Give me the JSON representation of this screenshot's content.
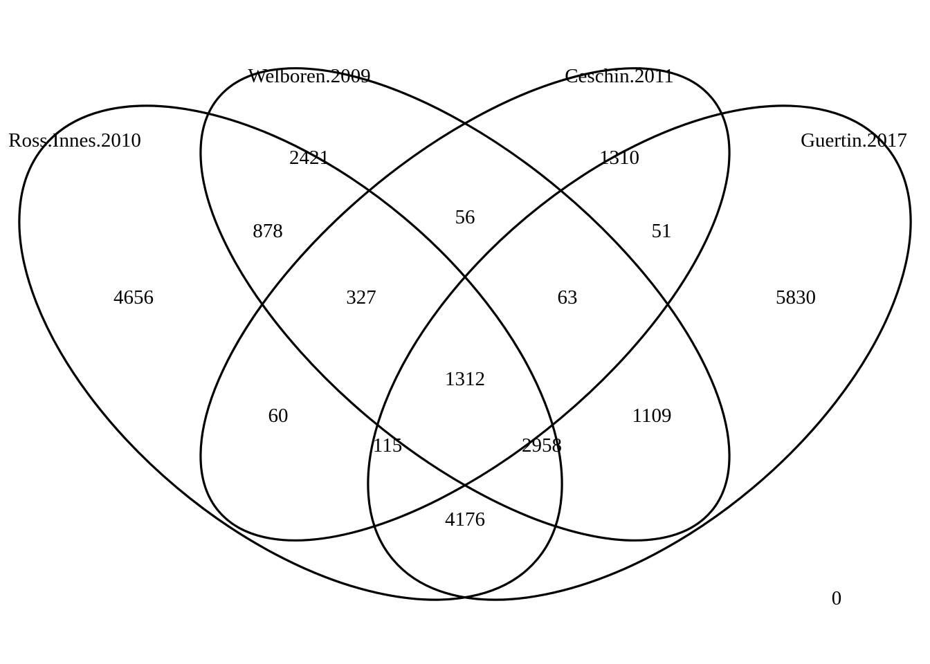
{
  "sets": [
    {
      "id": "A",
      "name": "Ross.Innes.2010"
    },
    {
      "id": "B",
      "name": "Welboren.2009"
    },
    {
      "id": "C",
      "name": "Ceschin.2011"
    },
    {
      "id": "D",
      "name": "Guertin.2017"
    }
  ],
  "regions": {
    "A": "4656",
    "B": "2421",
    "C": "1310",
    "D": "5830",
    "AB": "878",
    "BC": "56",
    "CD": "51",
    "ABC": "327",
    "BCD": "63",
    "ABCD": "1312",
    "AC": "60",
    "BD": "1109",
    "ACD": "115",
    "ABD": "2958",
    "AD": "4176",
    "none": "0"
  }
}
